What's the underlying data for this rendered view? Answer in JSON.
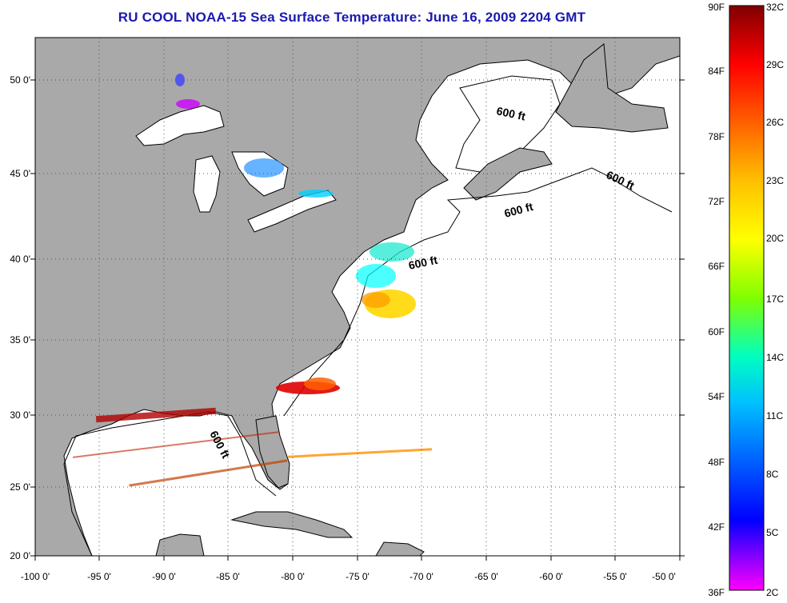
{
  "title": "RU COOL  NOAA-15  Sea Surface Temperature:  June 16, 2009 2204 GMT",
  "map": {
    "x_ticks": [
      "-100 0'",
      "-95 0'",
      "-90 0'",
      "-85 0'",
      "-80 0'",
      "-75 0'",
      "-70 0'",
      "-65 0'",
      "-60 0'",
      "-55 0'",
      "-50 0'"
    ],
    "y_ticks": [
      "50 0'",
      "45 0'",
      "40 0'",
      "35 0'",
      "30 0'",
      "25 0'",
      "20 0'"
    ],
    "contour_labels": [
      "600 ft",
      "600 ft",
      "600 ft",
      "600 ft",
      "600 ft"
    ],
    "colors": {
      "land": "#a9a9a9",
      "ocean": "#ffffff",
      "coast": "#000000",
      "grid": "#555555"
    }
  },
  "colorbar": {
    "f_labels": [
      "90F",
      "84F",
      "78F",
      "72F",
      "66F",
      "60F",
      "54F",
      "48F",
      "42F",
      "36F"
    ],
    "c_labels": [
      "32C",
      "29C",
      "26C",
      "23C",
      "20C",
      "17C",
      "14C",
      "11C",
      "8C",
      "5C",
      "2C"
    ],
    "gradient": [
      "#800000",
      "#ff0000",
      "#ff8000",
      "#ffff00",
      "#80ff00",
      "#00ffc0",
      "#00c0ff",
      "#0040ff",
      "#0000ff",
      "#8000ff",
      "#ff00ff"
    ]
  }
}
